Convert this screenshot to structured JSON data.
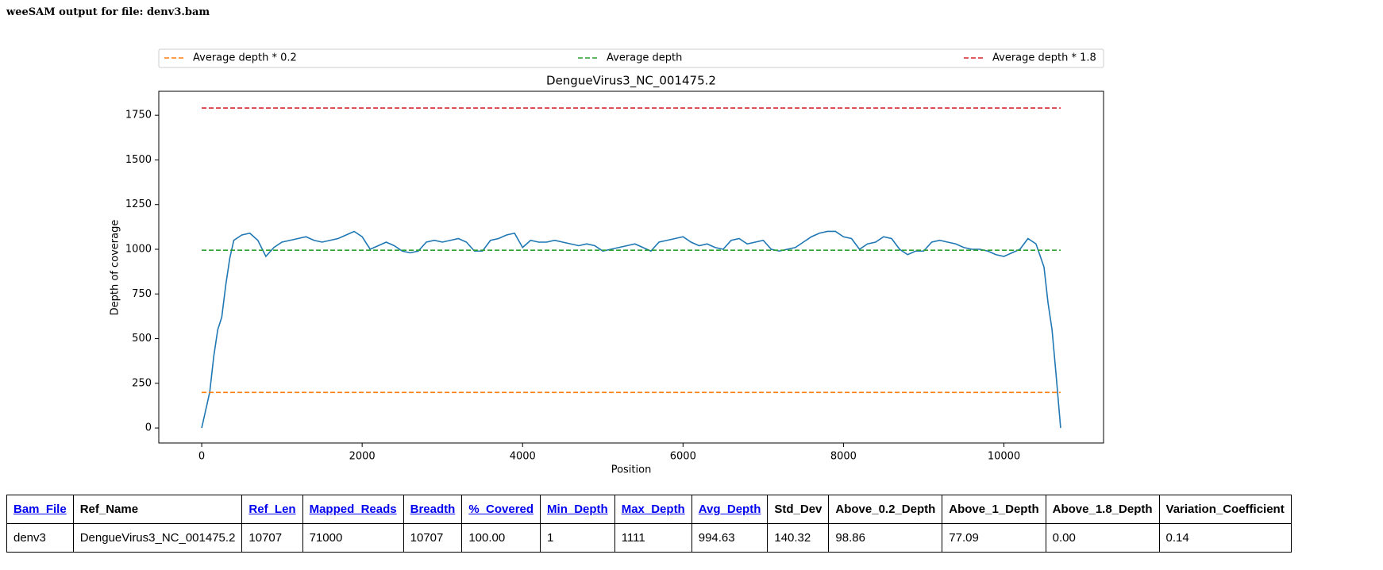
{
  "header": {
    "title": "weeSAM output for file: denv3.bam"
  },
  "chart_data": {
    "type": "line",
    "title": "DengueVirus3_NC_001475.2",
    "xlabel": "Position",
    "ylabel": "Depth of coverage",
    "xlim": [
      -535,
      11242
    ],
    "ylim": [
      -84,
      1884
    ],
    "xticks": [
      0,
      2000,
      4000,
      6000,
      8000,
      10000
    ],
    "yticks": [
      0,
      250,
      500,
      750,
      1000,
      1250,
      1500,
      1750
    ],
    "legend": "top-expanded",
    "series": [
      {
        "color": "#1f77b4",
        "linestyle": "solid",
        "x": [
          0,
          100,
          150,
          200,
          250,
          300,
          350,
          400,
          500,
          600,
          700,
          800,
          900,
          1000,
          1100,
          1200,
          1300,
          1400,
          1500,
          1600,
          1700,
          1800,
          1900,
          2000,
          2100,
          2200,
          2300,
          2400,
          2500,
          2600,
          2700,
          2800,
          2900,
          3000,
          3100,
          3200,
          3300,
          3400,
          3500,
          3600,
          3700,
          3800,
          3900,
          4000,
          4100,
          4200,
          4300,
          4400,
          4500,
          4600,
          4700,
          4800,
          4900,
          5000,
          5100,
          5200,
          5300,
          5400,
          5500,
          5600,
          5700,
          5800,
          5900,
          6000,
          6100,
          6200,
          6300,
          6400,
          6500,
          6600,
          6700,
          6800,
          6900,
          7000,
          7100,
          7200,
          7300,
          7400,
          7500,
          7600,
          7700,
          7800,
          7900,
          8000,
          8100,
          8200,
          8300,
          8400,
          8500,
          8600,
          8700,
          8800,
          8900,
          9000,
          9100,
          9200,
          9300,
          9400,
          9500,
          9600,
          9700,
          9800,
          9900,
          10000,
          10100,
          10200,
          10300,
          10400,
          10500,
          10550,
          10600,
          10650,
          10707
        ],
        "values": [
          0,
          200,
          400,
          550,
          620,
          800,
          950,
          1050,
          1080,
          1090,
          1050,
          960,
          1010,
          1040,
          1050,
          1060,
          1070,
          1050,
          1040,
          1050,
          1060,
          1080,
          1100,
          1070,
          1000,
          1020,
          1040,
          1020,
          990,
          980,
          990,
          1040,
          1050,
          1040,
          1050,
          1060,
          1040,
          990,
          990,
          1050,
          1060,
          1080,
          1090,
          1010,
          1050,
          1040,
          1040,
          1050,
          1040,
          1030,
          1020,
          1030,
          1020,
          990,
          1000,
          1010,
          1020,
          1030,
          1010,
          990,
          1040,
          1050,
          1060,
          1070,
          1040,
          1020,
          1030,
          1010,
          1000,
          1050,
          1060,
          1030,
          1040,
          1050,
          1000,
          990,
          1000,
          1010,
          1040,
          1070,
          1090,
          1100,
          1100,
          1070,
          1060,
          1000,
          1030,
          1040,
          1070,
          1060,
          1000,
          970,
          990,
          990,
          1040,
          1050,
          1040,
          1030,
          1010,
          1000,
          1000,
          990,
          970,
          960,
          980,
          1000,
          1060,
          1030,
          900,
          700,
          550,
          300,
          0
        ]
      },
      {
        "name": "Average depth * 0.2",
        "color": "#ff7f0e",
        "linestyle": "dashed",
        "x": [
          0,
          10707
        ],
        "values": [
          198.926,
          198.926
        ]
      },
      {
        "name": "Average depth",
        "color": "#2ca02c",
        "linestyle": "dashed",
        "x": [
          0,
          10707
        ],
        "values": [
          994.63,
          994.63
        ]
      },
      {
        "name": "Average depth * 1.8",
        "color": "#d62728",
        "linestyle": "dashed",
        "x": [
          0,
          10707
        ],
        "values": [
          1790.334,
          1790.334
        ]
      }
    ]
  },
  "table": {
    "headers": [
      {
        "text": "Bam_File",
        "link": true
      },
      {
        "text": "Ref_Name",
        "link": false
      },
      {
        "text": "Ref_Len",
        "link": true
      },
      {
        "text": "Mapped_Reads",
        "link": true
      },
      {
        "text": "Breadth",
        "link": true
      },
      {
        "text": "%_Covered",
        "link": true
      },
      {
        "text": "Min_Depth",
        "link": true
      },
      {
        "text": "Max_Depth",
        "link": true
      },
      {
        "text": "Avg_Depth",
        "link": true
      },
      {
        "text": "Std_Dev",
        "link": false
      },
      {
        "text": "Above_0.2_Depth",
        "link": false
      },
      {
        "text": "Above_1_Depth",
        "link": false
      },
      {
        "text": "Above_1.8_Depth",
        "link": false
      },
      {
        "text": "Variation_Coefficient",
        "link": false
      }
    ],
    "rows": [
      [
        "denv3",
        "DengueVirus3_NC_001475.2",
        "10707",
        "71000",
        "10707",
        "100.00",
        "1",
        "1111",
        "994.63",
        "140.32",
        "98.86",
        "77.09",
        "0.00",
        "0.14"
      ]
    ]
  }
}
